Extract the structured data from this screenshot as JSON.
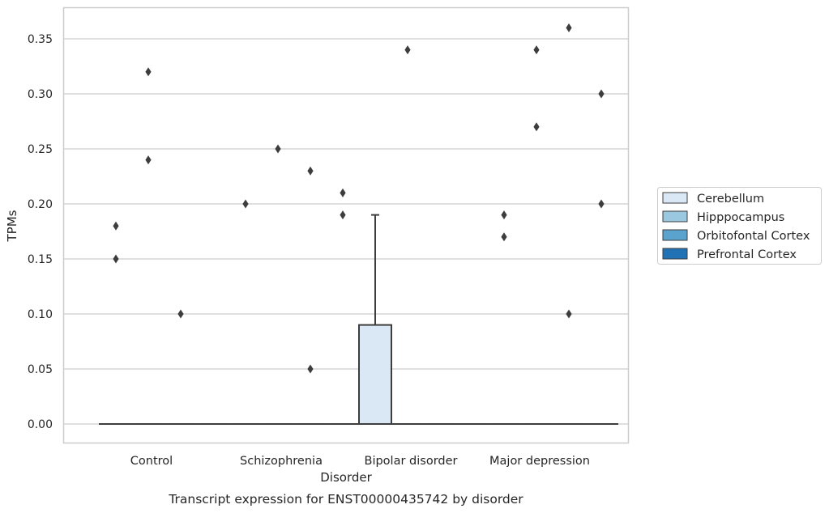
{
  "chart_data": {
    "type": "boxplot",
    "title": "",
    "caption": "Transcript expression for ENST00000435742 by disorder",
    "xlabel": "Disorder",
    "ylabel": "TPMs",
    "categories": [
      "Control",
      "Schizophrenia",
      "Bipolar disorder",
      "Major depression"
    ],
    "ylim": [
      -0.018,
      0.378
    ],
    "yticks": [
      0.0,
      0.05,
      0.1,
      0.15,
      0.2,
      0.25,
      0.3,
      0.35
    ],
    "ytick_labels": [
      "0.00",
      "0.05",
      "0.10",
      "0.15",
      "0.20",
      "0.25",
      "0.30",
      "0.35"
    ],
    "grid": true,
    "legend": {
      "placement": "right",
      "entries": [
        "Cerebellum",
        "Hipppocampus",
        "Orbitofontal Cortex",
        "Prefrontal Cortex"
      ]
    },
    "series": [
      {
        "name": "Cerebellum",
        "color": "#dae8f5",
        "boxes": [
          {
            "category": "Control",
            "q1": 0,
            "median": 0,
            "q3": 0,
            "whisker_low": 0,
            "whisker_high": 0,
            "outliers": [
              0.18,
              0.15
            ]
          },
          {
            "category": "Schizophrenia",
            "q1": 0,
            "median": 0,
            "q3": 0,
            "whisker_low": 0,
            "whisker_high": 0,
            "outliers": [
              0.2
            ]
          },
          {
            "category": "Bipolar disorder",
            "q1": 0,
            "median": 0,
            "q3": 0.09,
            "whisker_low": 0,
            "whisker_high": 0.19,
            "outliers": []
          },
          {
            "category": "Major depression",
            "q1": 0,
            "median": 0,
            "q3": 0,
            "whisker_low": 0,
            "whisker_high": 0,
            "outliers": [
              0.19,
              0.17
            ]
          }
        ]
      },
      {
        "name": "Hipppocampus",
        "color": "#9ac8e0",
        "boxes": [
          {
            "category": "Control",
            "q1": 0,
            "median": 0,
            "q3": 0,
            "whisker_low": 0,
            "whisker_high": 0,
            "outliers": [
              0.32,
              0.24
            ]
          },
          {
            "category": "Schizophrenia",
            "q1": 0,
            "median": 0,
            "q3": 0,
            "whisker_low": 0,
            "whisker_high": 0,
            "outliers": [
              0.25
            ]
          },
          {
            "category": "Bipolar disorder",
            "q1": 0,
            "median": 0,
            "q3": 0,
            "whisker_low": 0,
            "whisker_high": 0,
            "outliers": [
              0.34
            ]
          },
          {
            "category": "Major depression",
            "q1": 0,
            "median": 0,
            "q3": 0,
            "whisker_low": 0,
            "whisker_high": 0,
            "outliers": [
              0.34,
              0.27
            ]
          }
        ]
      },
      {
        "name": "Orbitofontal Cortex",
        "color": "#5ba3cf",
        "boxes": [
          {
            "category": "Control",
            "q1": 0,
            "median": 0,
            "q3": 0,
            "whisker_low": 0,
            "whisker_high": 0,
            "outliers": [
              0.1
            ]
          },
          {
            "category": "Schizophrenia",
            "q1": 0,
            "median": 0,
            "q3": 0,
            "whisker_low": 0,
            "whisker_high": 0,
            "outliers": [
              0.23,
              0.05
            ]
          },
          {
            "category": "Bipolar disorder",
            "q1": 0,
            "median": 0,
            "q3": 0,
            "whisker_low": 0,
            "whisker_high": 0,
            "outliers": []
          },
          {
            "category": "Major depression",
            "q1": 0,
            "median": 0,
            "q3": 0,
            "whisker_low": 0,
            "whisker_high": 0,
            "outliers": [
              0.36,
              0.1
            ]
          }
        ]
      },
      {
        "name": "Prefrontal Cortex",
        "color": "#2171b5",
        "boxes": [
          {
            "category": "Control",
            "q1": 0,
            "median": 0,
            "q3": 0,
            "whisker_low": 0,
            "whisker_high": 0,
            "outliers": []
          },
          {
            "category": "Schizophrenia",
            "q1": 0,
            "median": 0,
            "q3": 0,
            "whisker_low": 0,
            "whisker_high": 0,
            "outliers": [
              0.21,
              0.19
            ]
          },
          {
            "category": "Bipolar disorder",
            "q1": 0,
            "median": 0,
            "q3": 0,
            "whisker_low": 0,
            "whisker_high": 0,
            "outliers": []
          },
          {
            "category": "Major depression",
            "q1": 0,
            "median": 0,
            "q3": 0,
            "whisker_low": 0,
            "whisker_high": 0,
            "outliers": [
              0.3,
              0.2
            ]
          }
        ]
      }
    ],
    "colors": {
      "grid": "#cccccc",
      "axes": "#cccccc",
      "box_edge": "#3d3d3d",
      "text": "#262626"
    }
  }
}
